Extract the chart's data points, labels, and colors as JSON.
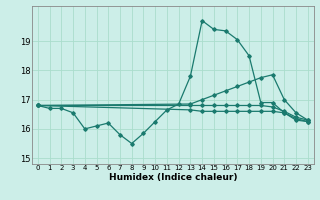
{
  "xlabel": "Humidex (Indice chaleur)",
  "bg_color": "#cceee8",
  "grid_color": "#aaddcc",
  "line_color": "#1a7a6e",
  "xlim": [
    -0.5,
    23.5
  ],
  "ylim": [
    14.8,
    20.2
  ],
  "yticks": [
    15,
    16,
    17,
    18,
    19
  ],
  "xticks": [
    0,
    1,
    2,
    3,
    4,
    5,
    6,
    7,
    8,
    9,
    10,
    11,
    12,
    13,
    14,
    15,
    16,
    17,
    18,
    19,
    20,
    21,
    22,
    23
  ],
  "series": [
    {
      "x": [
        0,
        1,
        2,
        3,
        4,
        5,
        6,
        7,
        8,
        9,
        10,
        11,
        12,
        13,
        14,
        15,
        16,
        17,
        18,
        19,
        20,
        21,
        22,
        23
      ],
      "y": [
        16.8,
        16.7,
        16.7,
        16.55,
        16.0,
        16.1,
        16.2,
        15.8,
        15.5,
        15.85,
        16.25,
        16.65,
        16.85,
        17.8,
        19.7,
        19.4,
        19.35,
        19.05,
        18.5,
        16.9,
        16.9,
        16.55,
        16.3,
        16.25
      ]
    },
    {
      "x": [
        0,
        13,
        14,
        15,
        16,
        17,
        18,
        19,
        20,
        21,
        22,
        23
      ],
      "y": [
        16.8,
        16.85,
        17.0,
        17.15,
        17.3,
        17.45,
        17.6,
        17.75,
        17.85,
        17.0,
        16.55,
        16.3
      ]
    },
    {
      "x": [
        0,
        13,
        14,
        15,
        16,
        17,
        18,
        19,
        20,
        21,
        22,
        23
      ],
      "y": [
        16.8,
        16.8,
        16.8,
        16.8,
        16.8,
        16.8,
        16.8,
        16.8,
        16.75,
        16.6,
        16.4,
        16.3
      ]
    },
    {
      "x": [
        0,
        13,
        14,
        15,
        16,
        17,
        18,
        19,
        20,
        21,
        22,
        23
      ],
      "y": [
        16.8,
        16.65,
        16.6,
        16.6,
        16.6,
        16.6,
        16.6,
        16.6,
        16.6,
        16.55,
        16.35,
        16.25
      ]
    }
  ]
}
